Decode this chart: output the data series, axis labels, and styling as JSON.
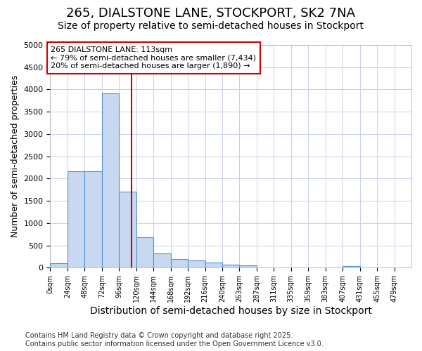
{
  "title_line1": "265, DIALSTONE LANE, STOCKPORT, SK2 7NA",
  "title_line2": "Size of property relative to semi-detached houses in Stockport",
  "xlabel": "Distribution of semi-detached houses by size in Stockport",
  "ylabel": "Number of semi-detached properties",
  "bin_labels": [
    "0sqm",
    "24sqm",
    "48sqm",
    "72sqm",
    "96sqm",
    "120sqm",
    "144sqm",
    "168sqm",
    "192sqm",
    "216sqm",
    "240sqm",
    "263sqm",
    "287sqm",
    "311sqm",
    "335sqm",
    "359sqm",
    "383sqm",
    "407sqm",
    "431sqm",
    "455sqm",
    "479sqm"
  ],
  "bar_values": [
    100,
    2170,
    2170,
    3920,
    1700,
    690,
    320,
    190,
    160,
    120,
    75,
    60,
    0,
    0,
    0,
    0,
    0,
    40,
    0,
    0,
    0
  ],
  "bar_color": "#c8d8f0",
  "bar_edge_color": "#5090d0",
  "ylim": [
    0,
    5000
  ],
  "yticks": [
    0,
    500,
    1000,
    1500,
    2000,
    2500,
    3000,
    3500,
    4000,
    4500,
    5000
  ],
  "property_value": 113,
  "vline_color": "#cc0000",
  "annotation_title": "265 DIALSTONE LANE: 113sqm",
  "annotation_line1": "← 79% of semi-detached houses are smaller (7,434)",
  "annotation_line2": "20% of semi-detached houses are larger (1,890) →",
  "annotation_box_color": "#ffffff",
  "annotation_border_color": "#cc0000",
  "footer_line1": "Contains HM Land Registry data © Crown copyright and database right 2025.",
  "footer_line2": "Contains public sector information licensed under the Open Government Licence v3.0.",
  "background_color": "#ffffff",
  "plot_bg_color": "#ffffff",
  "grid_color": "#c8d0e8",
  "bin_width": 24,
  "title_fontsize": 13,
  "subtitle_fontsize": 10,
  "xlabel_fontsize": 10,
  "ylabel_fontsize": 9,
  "tick_fontsize": 8,
  "annotation_fontsize": 8,
  "footer_fontsize": 7
}
